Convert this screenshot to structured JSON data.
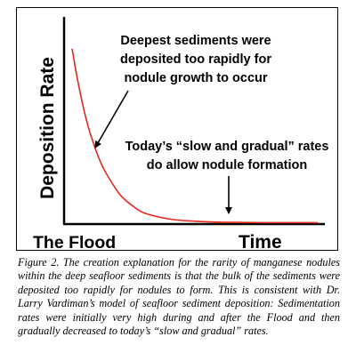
{
  "chart_data": {
    "type": "line",
    "title": "",
    "xlabel": "Time",
    "ylabel": "Deposition Rate",
    "x_tick_labels": [
      "The Flood"
    ],
    "series": [
      {
        "color": "#e8271f",
        "x": [
          0,
          0.02,
          0.05,
          0.08,
          0.12,
          0.16,
          0.2,
          0.25,
          0.3,
          0.4,
          0.5,
          0.6,
          0.7,
          0.8,
          0.9,
          1.0
        ],
        "values": [
          1.0,
          0.84,
          0.64,
          0.49,
          0.34,
          0.24,
          0.16,
          0.1,
          0.06,
          0.028,
          0.016,
          0.011,
          0.009,
          0.008,
          0.008,
          0.008
        ]
      }
    ],
    "annotations": [
      {
        "lines": [
          "Deepest sediments were",
          "deposited too rapidly for",
          "nodule growth to occur"
        ],
        "points_to": [
          0.11,
          0.38
        ]
      },
      {
        "lines": [
          "Today’s “slow and gradual” rates",
          "do allow nodule formation"
        ],
        "points_to": [
          0.74,
          0.008
        ]
      }
    ],
    "xlim": [
      0,
      1
    ],
    "ylim": [
      0,
      1.08
    ],
    "grid": false,
    "legend": "none"
  },
  "caption": {
    "label": "Figure 2.",
    "text": " The creation explanation for the rarity of manganese nodules within the deep seafloor sediments is that the bulk of the sediments were deposited too rapidly for nodules to form. This is consistent with Dr. Larry Vardiman’s model of seafloor sediment deposition: Sedimentation rates were initially very high during and after the Flood and then gradually decreased to today’s “slow and gradual” rates."
  }
}
